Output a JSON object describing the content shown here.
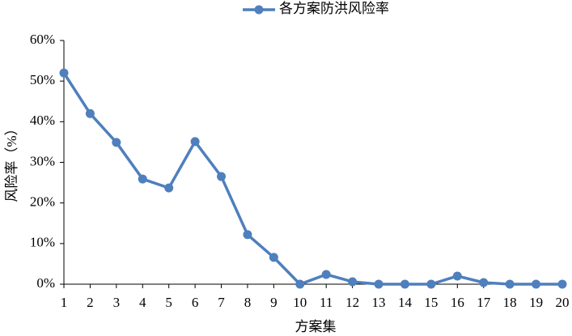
{
  "chart_data": {
    "type": "line",
    "series": [
      {
        "name": "各方案防洪风险率",
        "color": "#4f7fbd",
        "values": [
          52.0,
          42.0,
          34.9,
          25.9,
          23.7,
          35.1,
          26.5,
          12.2,
          6.6,
          0,
          2.4,
          0.6,
          0,
          0,
          0,
          2.0,
          0.4,
          0,
          0,
          0
        ]
      }
    ],
    "categories": [
      "1",
      "2",
      "3",
      "4",
      "5",
      "6",
      "7",
      "8",
      "9",
      "10",
      "11",
      "12",
      "13",
      "14",
      "15",
      "16",
      "17",
      "18",
      "19",
      "20"
    ],
    "x_label": "方案集",
    "y_label": "风险率（%）",
    "ylim": [
      0,
      60
    ],
    "yticks": [
      {
        "value": 0,
        "label": "0%"
      },
      {
        "value": 10,
        "label": "10%"
      },
      {
        "value": 20,
        "label": "20%"
      },
      {
        "value": 30,
        "label": "30%"
      },
      {
        "value": 40,
        "label": "40%"
      },
      {
        "value": 50,
        "label": "50%"
      },
      {
        "value": 60,
        "label": "60%"
      }
    ],
    "grid": false,
    "legend": "top"
  }
}
